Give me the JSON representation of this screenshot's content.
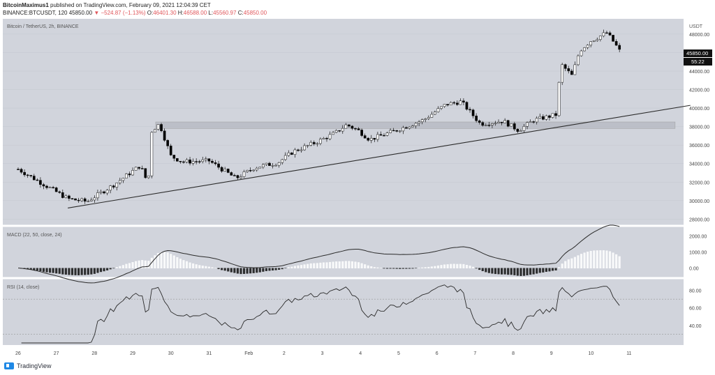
{
  "header": {
    "author": "BitcoinMaximus1",
    "published_text": " published on TradingView.com, February 09, 2021 12:04:39 CET",
    "symbol": "BINANCE:BTCUSDT, 120",
    "last": "45850.00",
    "change": "▼ −524.87 (−1.13%)",
    "open_label": "O:",
    "open": "46401.30",
    "high_label": "H:",
    "high": "46588.00",
    "low_label": "L:",
    "low": "45560.97",
    "close_label": "C:",
    "close": "45850.00"
  },
  "main_pane": {
    "legend": "Bitcoin / TetherUS, 2h, BINANCE",
    "currency": "USDT",
    "price_badge": "45850.00",
    "countdown_badge": "55:22",
    "price_ticks": [
      "48000.00",
      "46000.00",
      "44000.00",
      "42000.00",
      "40000.00",
      "38000.00",
      "36000.00",
      "34000.00",
      "32000.00",
      "30000.00",
      "28000.00"
    ]
  },
  "macd_pane": {
    "legend": "MACD (22, 50, close, 24)",
    "ticks": [
      "2000.00",
      "1000.00",
      "0.00"
    ]
  },
  "rsi_pane": {
    "legend": "RSI (14, close)",
    "ticks": [
      "80.00",
      "60.00",
      "40.00"
    ]
  },
  "time_axis": [
    "26",
    "27",
    "28",
    "29",
    "30",
    "31",
    "Feb",
    "2",
    "3",
    "4",
    "5",
    "6",
    "7",
    "8",
    "9",
    "10",
    "11"
  ],
  "footer": {
    "brand": "TradingView"
  },
  "colors": {
    "background": "#d1d4dc",
    "up": "#ffffff",
    "down": "#000000",
    "line": "#2a2a2a",
    "resistance_zone": "#b8bbc4"
  },
  "chart_data": {
    "type": "candlestick",
    "symbol": "BTCUSDT",
    "x_labels": [
      "26",
      "27",
      "28",
      "29",
      "30",
      "31",
      "Feb",
      "2",
      "3",
      "4",
      "5",
      "6",
      "7",
      "8",
      "9",
      "10",
      "11"
    ],
    "price_key": [
      {
        "x": 0.0,
        "price": 33400
      },
      {
        "x": 1.3,
        "price": 30200
      },
      {
        "x": 1.8,
        "price": 29900
      },
      {
        "x": 2.5,
        "price": 31700
      },
      {
        "x": 3.2,
        "price": 33800
      },
      {
        "x": 3.4,
        "price": 31800
      },
      {
        "x": 3.5,
        "price": 37600
      },
      {
        "x": 3.7,
        "price": 38300
      },
      {
        "x": 4.0,
        "price": 34800
      },
      {
        "x": 4.3,
        "price": 34200
      },
      {
        "x": 5.0,
        "price": 34300
      },
      {
        "x": 5.7,
        "price": 32400
      },
      {
        "x": 6.2,
        "price": 33600
      },
      {
        "x": 6.8,
        "price": 34100
      },
      {
        "x": 7.2,
        "price": 35300
      },
      {
        "x": 7.8,
        "price": 36300
      },
      {
        "x": 8.3,
        "price": 37300
      },
      {
        "x": 8.6,
        "price": 38200
      },
      {
        "x": 8.9,
        "price": 37600
      },
      {
        "x": 9.2,
        "price": 36600
      },
      {
        "x": 9.9,
        "price": 37600
      },
      {
        "x": 10.6,
        "price": 38700
      },
      {
        "x": 11.2,
        "price": 40400
      },
      {
        "x": 11.6,
        "price": 40700
      },
      {
        "x": 12.1,
        "price": 38300
      },
      {
        "x": 12.7,
        "price": 38600
      },
      {
        "x": 13.1,
        "price": 37600
      },
      {
        "x": 13.5,
        "price": 38700
      },
      {
        "x": 14.1,
        "price": 39300
      },
      {
        "x": 14.2,
        "price": 44800
      },
      {
        "x": 14.5,
        "price": 43500
      },
      {
        "x": 14.7,
        "price": 46200
      },
      {
        "x": 15.0,
        "price": 47300
      },
      {
        "x": 15.3,
        "price": 47900
      },
      {
        "x": 15.4,
        "price": 48200
      },
      {
        "x": 15.6,
        "price": 47100
      },
      {
        "x": 15.8,
        "price": 45850
      }
    ],
    "trendline": [
      {
        "x": 1.3,
        "price": 29200
      },
      {
        "x": 17.6,
        "price": 40300
      }
    ],
    "resistance_zone": {
      "low": 37800,
      "high": 38500
    },
    "price_range": [
      27500,
      49200
    ],
    "macd_range": [
      -500,
      2500
    ],
    "rsi_range": [
      20,
      90
    ],
    "rsi_levels": [
      70,
      30
    ]
  }
}
